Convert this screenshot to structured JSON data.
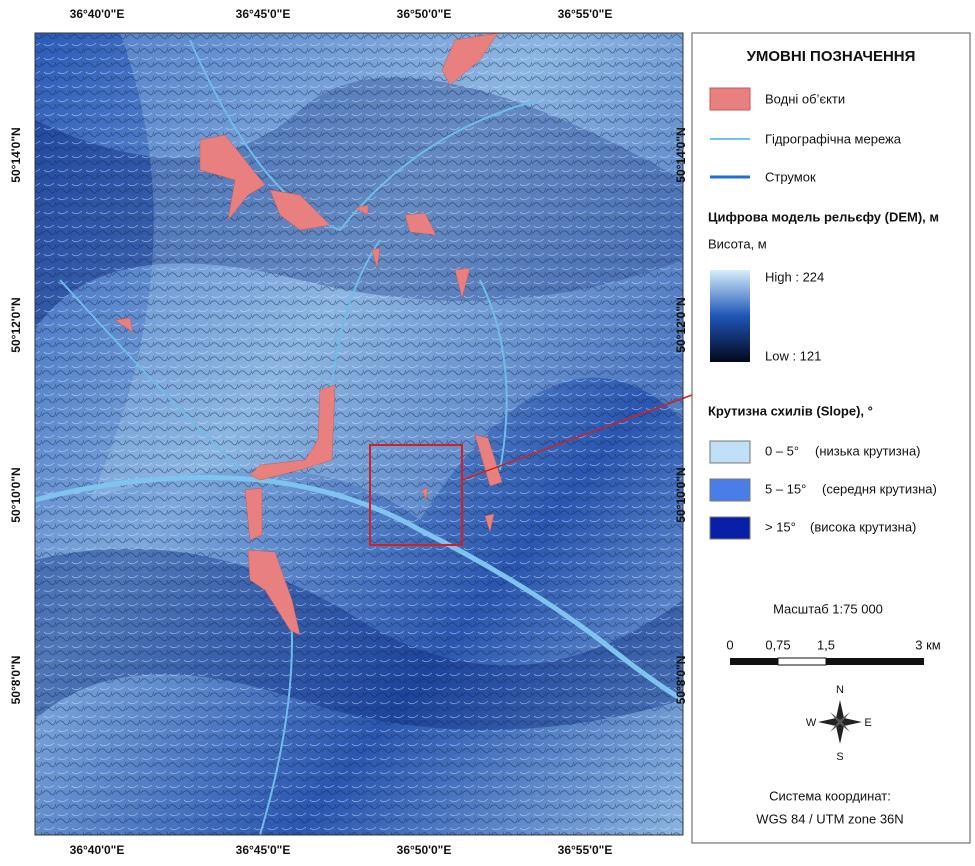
{
  "map": {
    "lon_labels_top": [
      "36°40'0\"E",
      "36°45'0\"E",
      "36°50'0\"E",
      "36°55'0\"E"
    ],
    "lon_labels_bottom": [
      "36°40'0\"E",
      "36°45'0\"E",
      "36°50'0\"E",
      "36°55'0\"E"
    ],
    "lat_labels_left": [
      "50°14'0\"N",
      "50°12'0\"N",
      "50°10'0\"N",
      "50°8'0\"N"
    ],
    "lat_labels_right": [
      "50°14'0\"N",
      "50°12'0\"N",
      "50°10'0\"N",
      "50°8'0\"N"
    ]
  },
  "legend": {
    "title": "УМОВНІ ПОЗНАЧЕННЯ",
    "items": [
      {
        "label": "Водні об’єкти"
      },
      {
        "label": "Гідрографічна мережа"
      },
      {
        "label": "Струмок"
      }
    ],
    "dem": {
      "title": "Цифрова модель рельєфу (DEM), м",
      "subtitle": "Висота, м",
      "high": "High : 224",
      "low": "Low : 121"
    },
    "slope": {
      "title": "Крутизна схилів (Slope), °",
      "classes": [
        {
          "range": "0 – 5°",
          "label": "(низька крутизна)"
        },
        {
          "range": "5 – 15°",
          "label": "(середня крутизна)"
        },
        {
          "range": "> 15°",
          "label": "(висока крутизна)"
        }
      ]
    },
    "scale": {
      "title": "Масштаб  1:75 000",
      "ticks": [
        "0",
        "0,75",
        "1,5",
        "3 км"
      ]
    },
    "compass": {
      "n": "N",
      "e": "E",
      "s": "S",
      "w": "W"
    },
    "crs": {
      "title": "Система координат:",
      "value": "WGS 84 / UTM zone 36N"
    }
  }
}
